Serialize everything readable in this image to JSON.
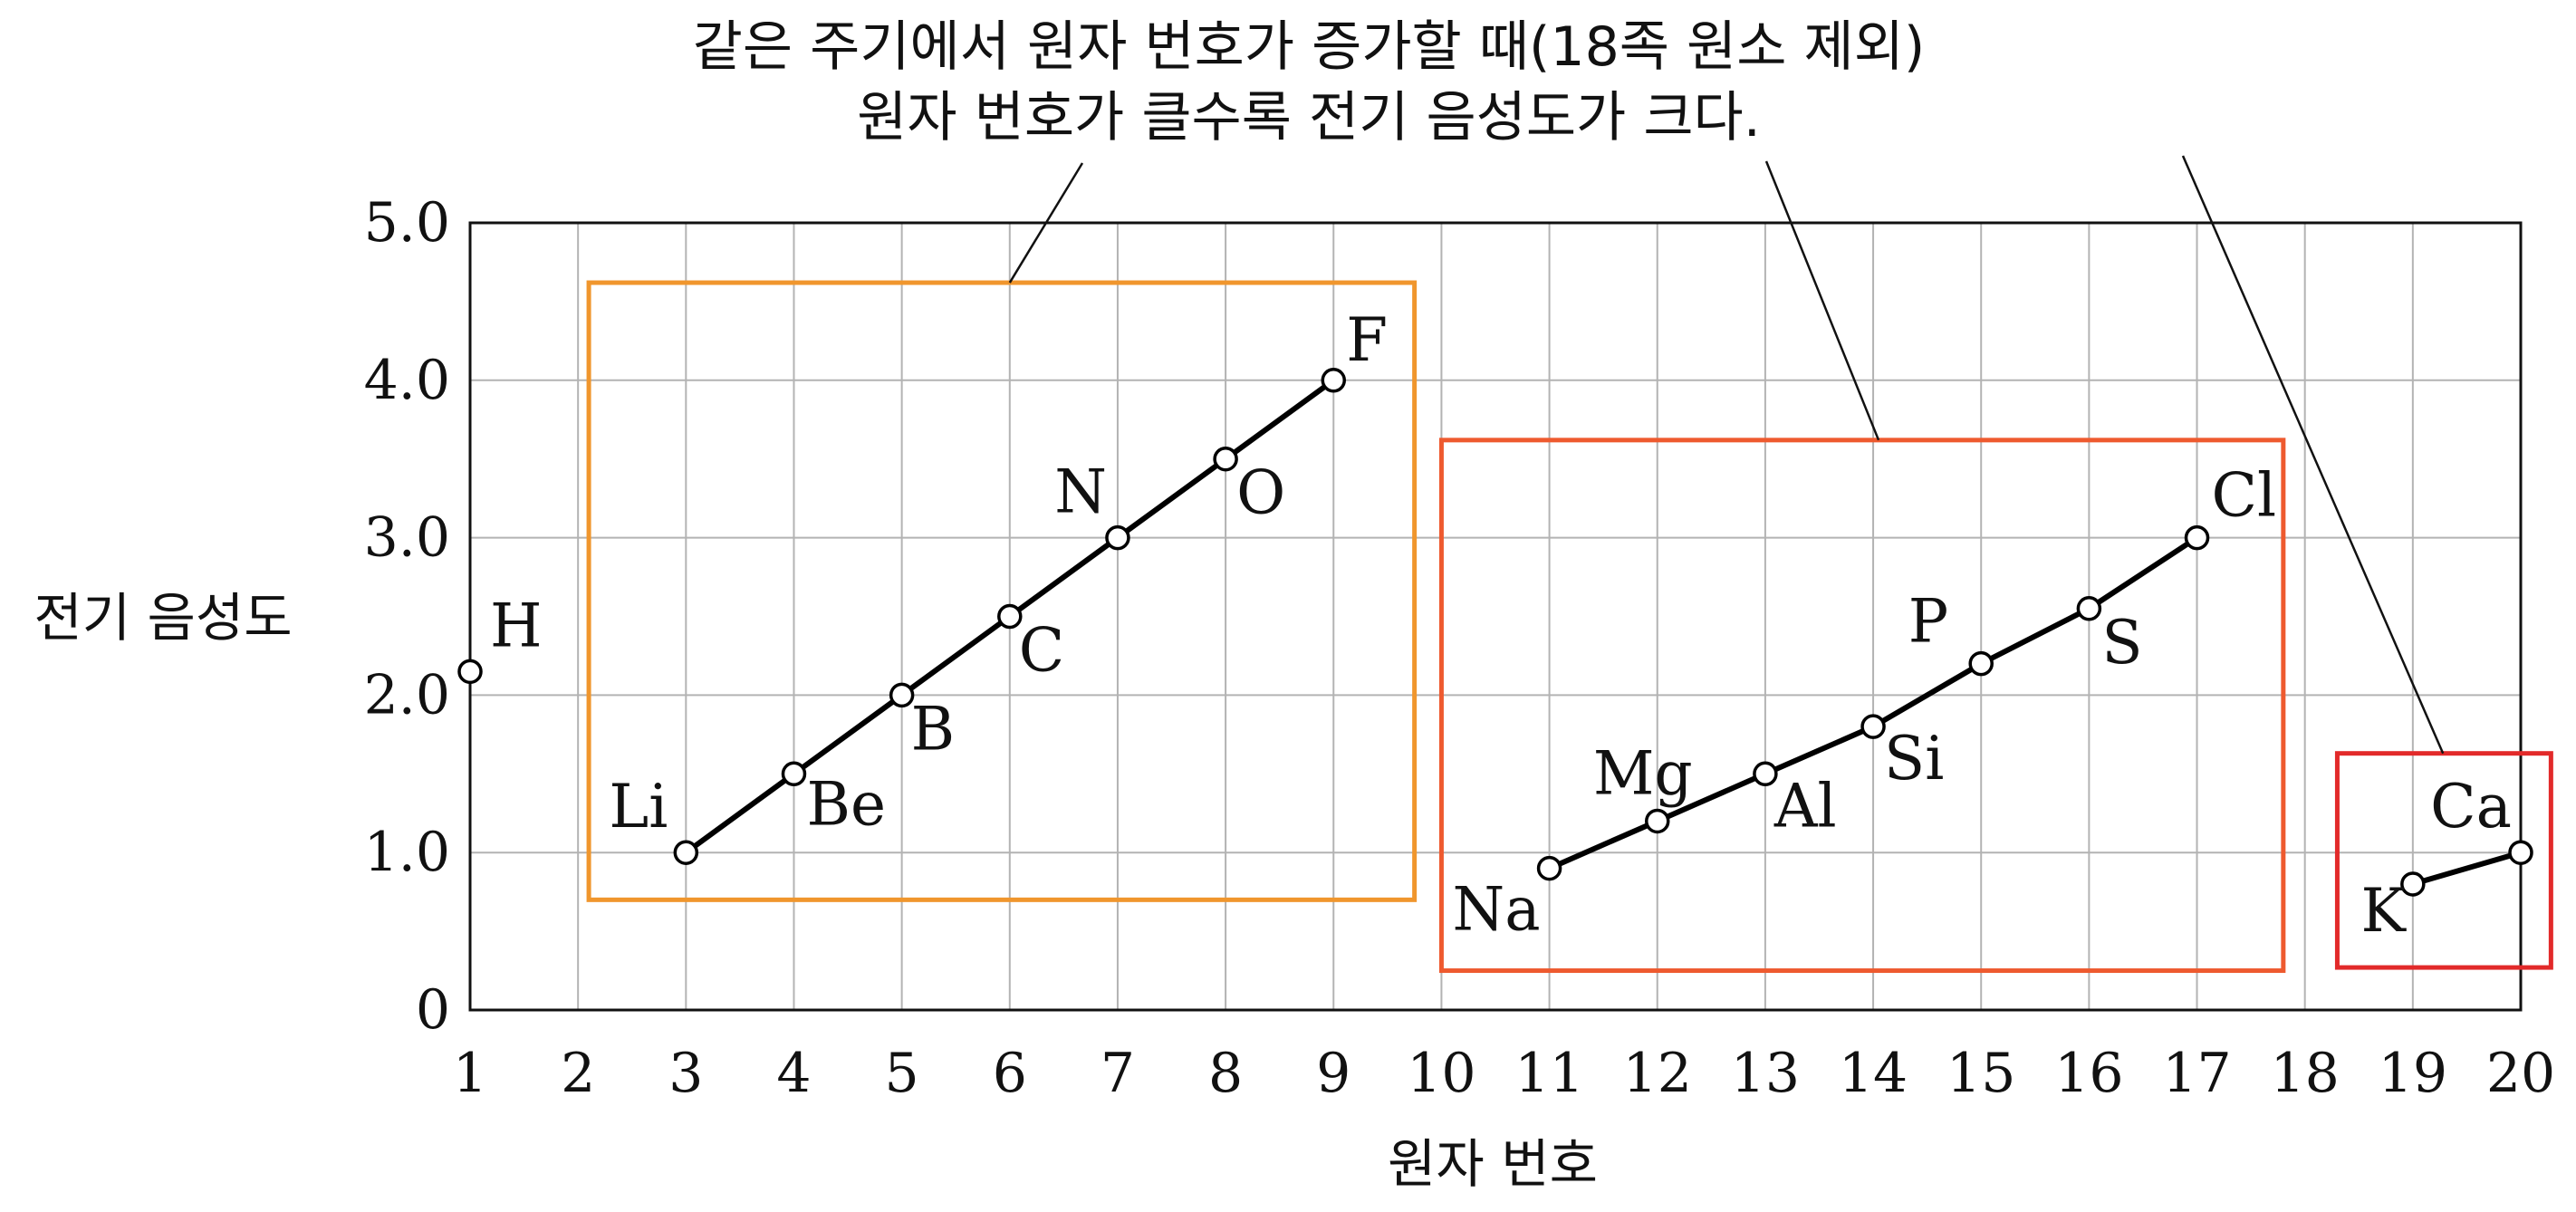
{
  "chart_data": {
    "type": "line",
    "title": "",
    "xlabel": "원자 번호",
    "ylabel": "전기 음성도",
    "xlim": [
      1,
      20
    ],
    "ylim": [
      0,
      5.0
    ],
    "x_ticks": [
      "1",
      "2",
      "3",
      "4",
      "5",
      "6",
      "7",
      "8",
      "9",
      "10",
      "11",
      "12",
      "13",
      "14",
      "15",
      "16",
      "17",
      "18",
      "19",
      "20"
    ],
    "y_ticks": [
      "0",
      "1.0",
      "2.0",
      "3.0",
      "4.0",
      "5.0"
    ],
    "grid": true,
    "annotation": {
      "line1": "같은 주기에서  원자 번호가 증가할 때(18족 원소 제외)",
      "line2": "원자 번호가 클수록 전기 음성도가 크다."
    },
    "series": [
      {
        "points": [
          {
            "x": 1,
            "y": 2.15,
            "label": "H"
          }
        ]
      },
      {
        "points": [
          {
            "x": 3,
            "y": 1.0,
            "label": "Li"
          },
          {
            "x": 4,
            "y": 1.5,
            "label": "Be"
          },
          {
            "x": 5,
            "y": 2.0,
            "label": "B"
          },
          {
            "x": 6,
            "y": 2.5,
            "label": "C"
          },
          {
            "x": 7,
            "y": 3.0,
            "label": "N"
          },
          {
            "x": 8,
            "y": 3.5,
            "label": "O"
          },
          {
            "x": 9,
            "y": 4.0,
            "label": "F"
          }
        ]
      },
      {
        "points": [
          {
            "x": 11,
            "y": 0.9,
            "label": "Na"
          },
          {
            "x": 12,
            "y": 1.2,
            "label": "Mg"
          },
          {
            "x": 13,
            "y": 1.5,
            "label": "Al"
          },
          {
            "x": 14,
            "y": 1.8,
            "label": "Si"
          },
          {
            "x": 15,
            "y": 2.2,
            "label": "P"
          },
          {
            "x": 16,
            "y": 2.55,
            "label": "S"
          },
          {
            "x": 17,
            "y": 3.0,
            "label": "Cl"
          }
        ]
      },
      {
        "points": [
          {
            "x": 19,
            "y": 0.8,
            "label": "K"
          },
          {
            "x": 20,
            "y": 1.0,
            "label": "Ca"
          }
        ]
      }
    ],
    "period_boxes": [
      {
        "name": "period-2",
        "color": "#f0962d"
      },
      {
        "name": "period-3",
        "color": "#ee5a2f"
      },
      {
        "name": "period-4",
        "color": "#e22a2a"
      }
    ]
  }
}
